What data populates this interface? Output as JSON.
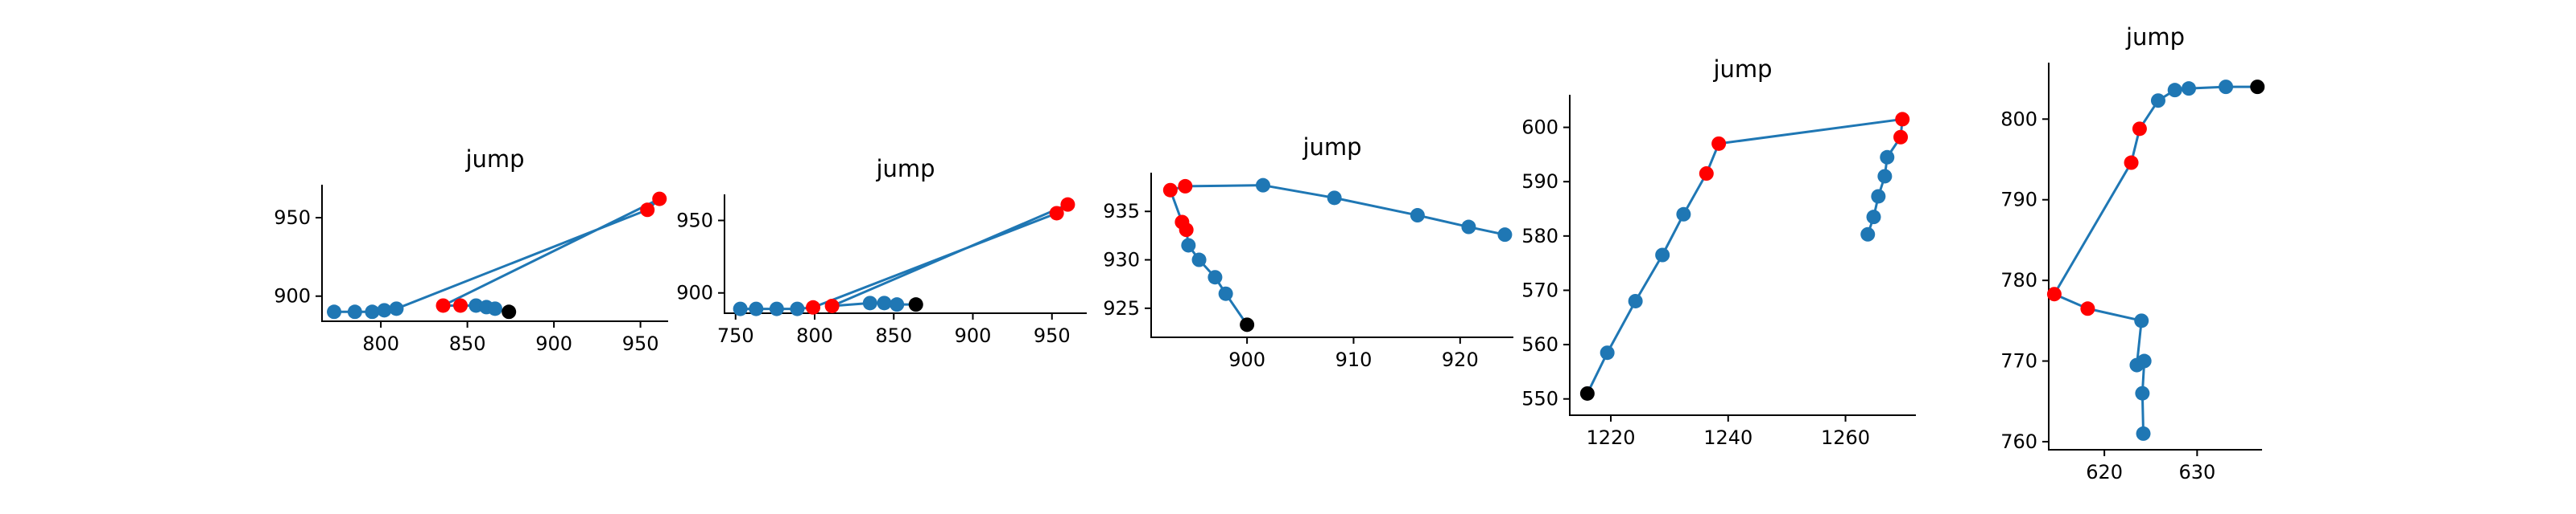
{
  "chart_data": [
    {
      "type": "line",
      "title": "jump",
      "xlim": [
        766,
        966
      ],
      "ylim": [
        884,
        971
      ],
      "xticks": [
        800,
        850,
        900,
        950
      ],
      "yticks": [
        900,
        950
      ],
      "line_color": "#1f77b4",
      "points": [
        {
          "x": 773,
          "y": 890,
          "color": "#1f77b4"
        },
        {
          "x": 785,
          "y": 890,
          "color": "#1f77b4"
        },
        {
          "x": 795,
          "y": 890,
          "color": "#1f77b4"
        },
        {
          "x": 802,
          "y": 891,
          "color": "#1f77b4"
        },
        {
          "x": 809,
          "y": 892,
          "color": "#1f77b4"
        },
        {
          "x": 954,
          "y": 955,
          "color": "#ff0000"
        },
        {
          "x": 961,
          "y": 962,
          "color": "#ff0000"
        },
        {
          "x": 836,
          "y": 894,
          "color": "#ff0000"
        },
        {
          "x": 846,
          "y": 894,
          "color": "#ff0000"
        },
        {
          "x": 855,
          "y": 894,
          "color": "#1f77b4"
        },
        {
          "x": 861,
          "y": 893,
          "color": "#1f77b4"
        },
        {
          "x": 866,
          "y": 892,
          "color": "#1f77b4"
        },
        {
          "x": 874,
          "y": 890,
          "color": "#000000"
        }
      ]
    },
    {
      "type": "line",
      "title": "jump",
      "xlim": [
        743,
        972
      ],
      "ylim": [
        886,
        968
      ],
      "xticks": [
        750,
        800,
        850,
        900,
        950
      ],
      "yticks": [
        900,
        950
      ],
      "line_color": "#1f77b4",
      "points": [
        {
          "x": 753,
          "y": 889,
          "color": "#1f77b4"
        },
        {
          "x": 763,
          "y": 889,
          "color": "#1f77b4"
        },
        {
          "x": 776,
          "y": 889,
          "color": "#1f77b4"
        },
        {
          "x": 789,
          "y": 889,
          "color": "#1f77b4"
        },
        {
          "x": 799,
          "y": 890,
          "color": "#ff0000"
        },
        {
          "x": 953,
          "y": 955,
          "color": "#ff0000"
        },
        {
          "x": 960,
          "y": 961,
          "color": "#ff0000"
        },
        {
          "x": 811,
          "y": 891,
          "color": "#ff0000"
        },
        {
          "x": 835,
          "y": 893,
          "color": "#1f77b4"
        },
        {
          "x": 844,
          "y": 893,
          "color": "#1f77b4"
        },
        {
          "x": 852,
          "y": 892,
          "color": "#1f77b4"
        },
        {
          "x": 864,
          "y": 892,
          "color": "#000000"
        }
      ]
    },
    {
      "type": "line",
      "title": "jump",
      "xlim": [
        891,
        925
      ],
      "ylim": [
        922,
        939
      ],
      "xticks": [
        900,
        910,
        920
      ],
      "yticks": [
        925,
        930,
        935
      ],
      "line_color": "#1f77b4",
      "points": [
        {
          "x": 900,
          "y": 923.3,
          "color": "#000000"
        },
        {
          "x": 898,
          "y": 926.5,
          "color": "#1f77b4"
        },
        {
          "x": 897,
          "y": 928.2,
          "color": "#1f77b4"
        },
        {
          "x": 895.5,
          "y": 930,
          "color": "#1f77b4"
        },
        {
          "x": 894.5,
          "y": 931.5,
          "color": "#1f77b4"
        },
        {
          "x": 894.3,
          "y": 933.1,
          "color": "#ff0000"
        },
        {
          "x": 893.9,
          "y": 933.9,
          "color": "#ff0000"
        },
        {
          "x": 892.8,
          "y": 937.2,
          "color": "#ff0000"
        },
        {
          "x": 894.2,
          "y": 937.6,
          "color": "#ff0000"
        },
        {
          "x": 901.5,
          "y": 937.7,
          "color": "#1f77b4"
        },
        {
          "x": 908.2,
          "y": 936.4,
          "color": "#1f77b4"
        },
        {
          "x": 916,
          "y": 934.6,
          "color": "#1f77b4"
        },
        {
          "x": 920.8,
          "y": 933.4,
          "color": "#1f77b4"
        },
        {
          "x": 924.2,
          "y": 932.6,
          "color": "#1f77b4"
        }
      ]
    },
    {
      "type": "line",
      "title": "jump",
      "xlim": [
        1213,
        1272
      ],
      "ylim": [
        547,
        606
      ],
      "xticks": [
        1220,
        1240,
        1260
      ],
      "yticks": [
        550,
        560,
        570,
        580,
        590,
        600
      ],
      "line_color": "#1f77b4",
      "points": [
        {
          "x": 1216,
          "y": 551,
          "color": "#000000"
        },
        {
          "x": 1219.4,
          "y": 558.5,
          "color": "#1f77b4"
        },
        {
          "x": 1224.2,
          "y": 568,
          "color": "#1f77b4"
        },
        {
          "x": 1228.8,
          "y": 576.5,
          "color": "#1f77b4"
        },
        {
          "x": 1232.4,
          "y": 584,
          "color": "#1f77b4"
        },
        {
          "x": 1236.3,
          "y": 591.5,
          "color": "#ff0000"
        },
        {
          "x": 1238.4,
          "y": 597,
          "color": "#ff0000"
        },
        {
          "x": 1269.7,
          "y": 601.5,
          "color": "#ff0000"
        },
        {
          "x": 1269.4,
          "y": 598.2,
          "color": "#ff0000"
        },
        {
          "x": 1267.1,
          "y": 594.5,
          "color": "#1f77b4"
        },
        {
          "x": 1266.7,
          "y": 591,
          "color": "#1f77b4"
        },
        {
          "x": 1265.6,
          "y": 587.3,
          "color": "#1f77b4"
        },
        {
          "x": 1264.8,
          "y": 583.5,
          "color": "#1f77b4"
        },
        {
          "x": 1263.8,
          "y": 580.3,
          "color": "#1f77b4"
        }
      ]
    },
    {
      "type": "line",
      "title": "jump",
      "xlim": [
        614,
        637
      ],
      "ylim": [
        759,
        807
      ],
      "xticks": [
        620,
        630
      ],
      "yticks": [
        760,
        770,
        780,
        790,
        800
      ],
      "line_color": "#1f77b4",
      "points": [
        {
          "x": 624.2,
          "y": 761,
          "color": "#1f77b4"
        },
        {
          "x": 624.1,
          "y": 766,
          "color": "#1f77b4"
        },
        {
          "x": 624.3,
          "y": 770,
          "color": "#1f77b4"
        },
        {
          "x": 623.5,
          "y": 769.5,
          "color": "#1f77b4"
        },
        {
          "x": 624,
          "y": 775,
          "color": "#1f77b4"
        },
        {
          "x": 618.2,
          "y": 776.5,
          "color": "#ff0000"
        },
        {
          "x": 614.6,
          "y": 778.3,
          "color": "#ff0000"
        },
        {
          "x": 622.9,
          "y": 794.6,
          "color": "#ff0000"
        },
        {
          "x": 623.8,
          "y": 798.8,
          "color": "#ff0000"
        },
        {
          "x": 625.8,
          "y": 802.3,
          "color": "#1f77b4"
        },
        {
          "x": 627.6,
          "y": 803.6,
          "color": "#1f77b4"
        },
        {
          "x": 629.1,
          "y": 803.8,
          "color": "#1f77b4"
        },
        {
          "x": 633.1,
          "y": 804,
          "color": "#1f77b4"
        },
        {
          "x": 636.5,
          "y": 804,
          "color": "#000000"
        }
      ]
    }
  ]
}
